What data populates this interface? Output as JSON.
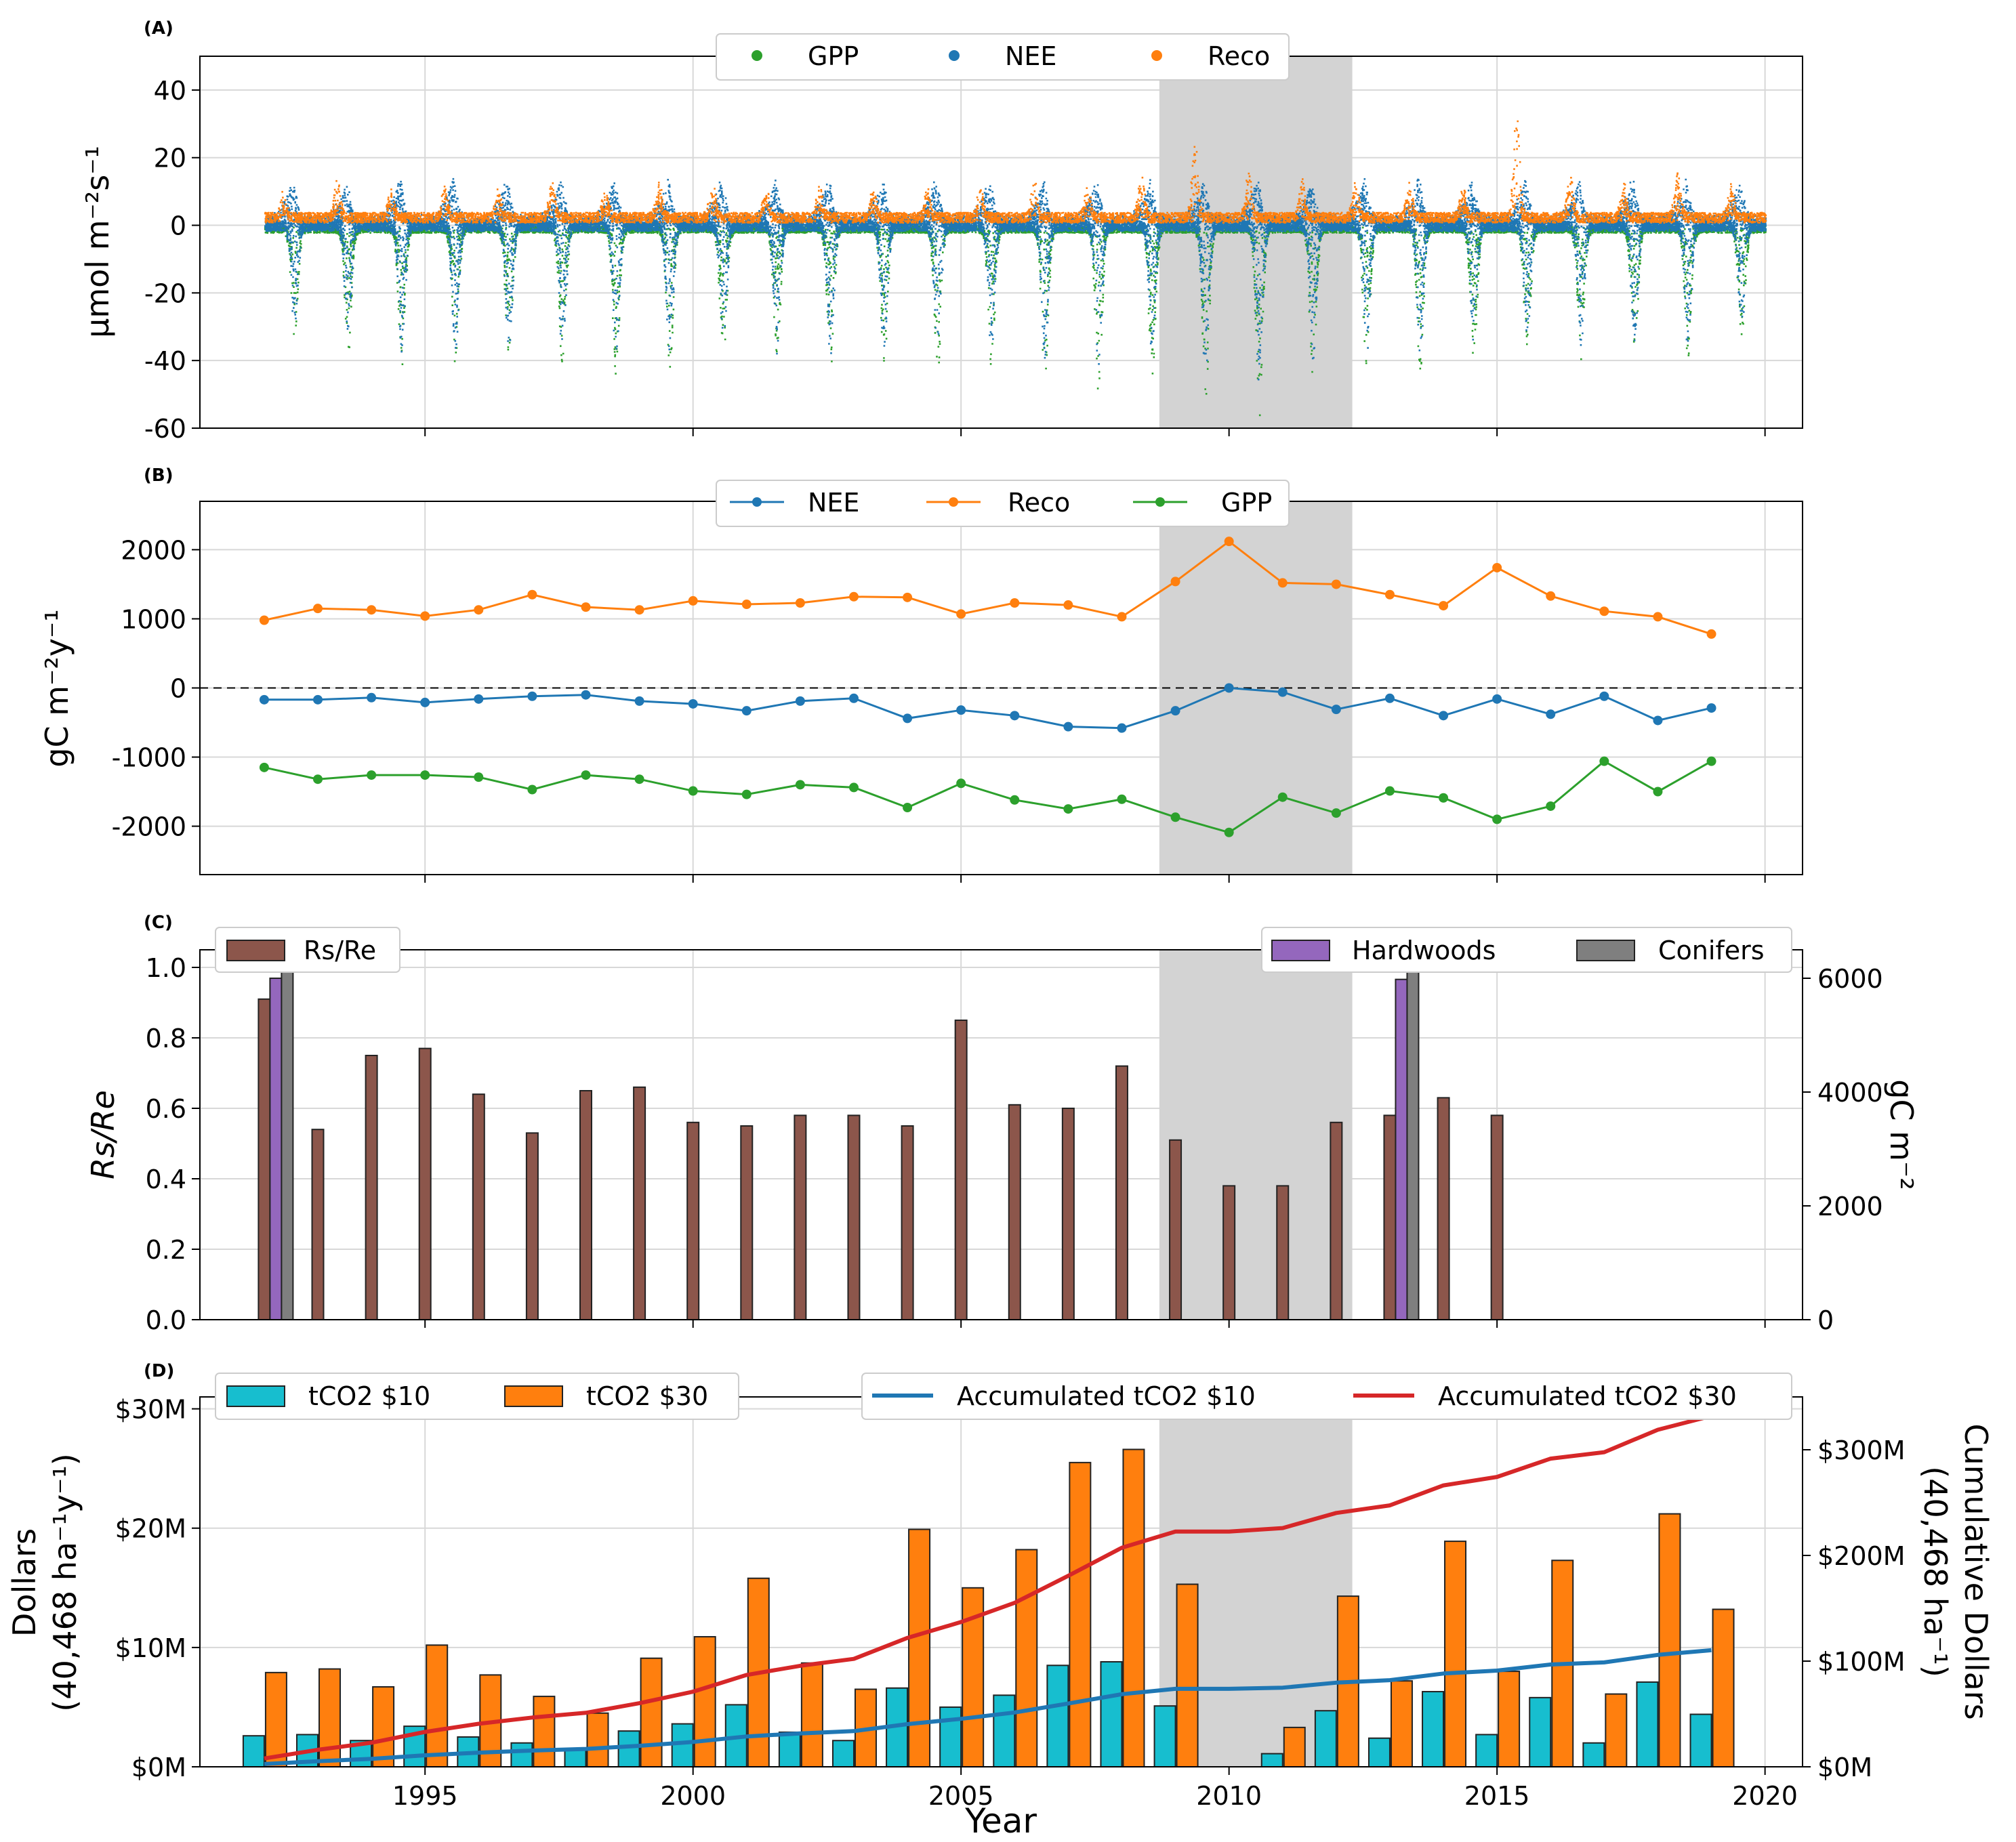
{
  "colors": {
    "gpp": "#2ca02c",
    "nee": "#1f77b4",
    "reco": "#ff7f0e",
    "shade": "#d3d3d3",
    "rsre": "#8c564b",
    "hardwoods": "#9467bd",
    "conifers": "#7f7f7f",
    "t10": "#17becf",
    "t30": "#ff7f0e",
    "acc10": "#1f77b4",
    "acc30": "#d62728"
  },
  "x_axis": {
    "label": "Year",
    "ticks": [
      1995,
      2000,
      2005,
      2010,
      2015,
      2020
    ],
    "range": [
      1990.8,
      2020.7
    ]
  },
  "shaded_period": [
    2008.7,
    2012.3
  ],
  "chart_data": [
    {
      "panel": "(A)",
      "type": "scatter",
      "ylabel": "μmol m⁻²s⁻¹",
      "ylim": [
        -60,
        50
      ],
      "yticks": [
        40,
        20,
        0,
        -20,
        -40,
        -60
      ],
      "legend": [
        "GPP",
        "NEE",
        "Reco"
      ],
      "note": "half-hourly fluxes 1992–2019; seasonal summer troughs",
      "x_range": [
        1992,
        2020
      ],
      "yearly_summer_min_nee": [
        -29,
        -34,
        -37,
        -37,
        -37,
        -38,
        -40,
        -38,
        -36,
        -37,
        -38,
        -37,
        -38,
        -38,
        -40,
        -43,
        -38,
        -45,
        -52,
        -40,
        -38,
        -38,
        -35,
        -33,
        -35,
        -35,
        -36,
        -30
      ],
      "yearly_summer_min_gpp": [
        -33,
        -38,
        -40,
        -40,
        -40,
        -41,
        -43,
        -42,
        -40,
        -40,
        -42,
        -40,
        -42,
        -42,
        -45,
        -48,
        -43,
        -50,
        -58,
        -44,
        -42,
        -42,
        -39,
        -36,
        -39,
        -39,
        -40,
        -33
      ],
      "yearly_peak_reco": [
        8,
        11,
        9,
        9,
        8,
        11,
        8,
        10,
        10,
        9,
        9,
        9,
        9,
        9,
        12,
        9,
        14,
        24,
        13,
        12,
        11,
        10,
        9,
        32,
        12,
        10,
        13,
        9
      ]
    },
    {
      "panel": "(B)",
      "type": "line",
      "ylabel": "gC m⁻²y⁻¹",
      "ylim": [
        -2700,
        2700
      ],
      "yticks": [
        2000,
        1000,
        0,
        -1000,
        -2000
      ],
      "x": [
        1992,
        1993,
        1994,
        1995,
        1996,
        1997,
        1998,
        1999,
        2000,
        2001,
        2002,
        2003,
        2004,
        2005,
        2006,
        2007,
        2008,
        2009,
        2010,
        2011,
        2012,
        2013,
        2014,
        2015,
        2016,
        2017,
        2018,
        2019
      ],
      "series": [
        {
          "name": "NEE",
          "values": [
            -170,
            -170,
            -140,
            -210,
            -160,
            -120,
            -100,
            -190,
            -230,
            -330,
            -190,
            -150,
            -440,
            -320,
            -400,
            -560,
            -580,
            -330,
            0,
            -60,
            -310,
            -150,
            -400,
            -160,
            -380,
            -120,
            -470,
            -290
          ]
        },
        {
          "name": "Reco",
          "values": [
            980,
            1150,
            1130,
            1040,
            1130,
            1350,
            1170,
            1130,
            1260,
            1210,
            1230,
            1320,
            1310,
            1070,
            1230,
            1200,
            1030,
            1540,
            2120,
            1520,
            1500,
            1350,
            1190,
            1740,
            1330,
            1110,
            1030,
            780
          ]
        },
        {
          "name": "GPP",
          "values": [
            -1150,
            -1320,
            -1260,
            -1260,
            -1290,
            -1470,
            -1260,
            -1320,
            -1490,
            -1540,
            -1400,
            -1440,
            -1730,
            -1380,
            -1620,
            -1750,
            -1610,
            -1870,
            -2090,
            -1580,
            -1810,
            -1490,
            -1590,
            -1900,
            -1710,
            -1060,
            -1500,
            -1060
          ]
        }
      ],
      "zero_line": "dashed"
    },
    {
      "panel": "(C)",
      "type": "bar",
      "ylabel": "Rs/Re",
      "ylabel2": "gC m⁻²",
      "ylim": [
        0,
        1.05
      ],
      "yticks": [
        "0.0",
        "0.2",
        "0.4",
        "0.6",
        "0.8",
        "1.0"
      ],
      "ylim2": [
        0,
        6500
      ],
      "yticks2": [
        0,
        2000,
        4000,
        6000
      ],
      "legend": [
        "Rs/Re",
        "Hardwoods",
        "Conifers"
      ],
      "rsre": {
        "x": [
          1992,
          1993,
          1994,
          1995,
          1996,
          1997,
          1998,
          1999,
          2000,
          2001,
          2002,
          2003,
          2004,
          2005,
          2006,
          2007,
          2008,
          2009,
          2010,
          2011,
          2012,
          2013,
          2014,
          2015
        ],
        "values": [
          0.91,
          0.54,
          0.75,
          0.77,
          0.64,
          0.53,
          0.65,
          0.66,
          0.56,
          0.55,
          0.58,
          0.58,
          0.55,
          0.85,
          0.61,
          0.6,
          0.72,
          0.51,
          0.38,
          0.38,
          0.56,
          0.58,
          0.63,
          0.58
        ]
      },
      "biomass": [
        {
          "year": 1992,
          "hardwoods": 6000,
          "conifers": 6230
        },
        {
          "year": 2013,
          "hardwoods": 5980,
          "conifers": 6250
        }
      ]
    },
    {
      "panel": "(D)",
      "type": "bar+line",
      "ylabel": "Dollars",
      "ylabel_sub": "(40,468 ha⁻¹y⁻¹)",
      "ylabel2": "Cumulative Dollars",
      "ylabel2_sub": "(40,468 ha⁻¹)",
      "ylim": [
        0,
        31
      ],
      "yticks": [
        "$0M",
        "$10M",
        "$20M",
        "$30M"
      ],
      "ylim2": [
        0,
        350
      ],
      "yticks2": [
        "$0M",
        "$100M",
        "$200M",
        "$300M"
      ],
      "legend": [
        "tCO2 $10",
        "tCO2 $30",
        "Accumulated tCO2 $10",
        "Accumulated tCO2 $30"
      ],
      "x": [
        1992,
        1993,
        1994,
        1995,
        1996,
        1997,
        1998,
        1999,
        2000,
        2001,
        2002,
        2003,
        2004,
        2005,
        2006,
        2007,
        2008,
        2009,
        2010,
        2011,
        2012,
        2013,
        2014,
        2015,
        2016,
        2017,
        2018,
        2019
      ],
      "tco2_10": [
        2.6,
        2.7,
        2.2,
        3.4,
        2.5,
        2.0,
        1.5,
        3.0,
        3.6,
        5.2,
        2.9,
        2.2,
        6.6,
        5.0,
        6.0,
        8.5,
        8.8,
        5.1,
        0,
        1.1,
        4.7,
        2.4,
        6.3,
        2.7,
        5.8,
        2.0,
        7.1,
        4.4
      ],
      "tco2_30": [
        7.9,
        8.2,
        6.7,
        10.2,
        7.7,
        5.9,
        4.5,
        9.1,
        10.9,
        15.8,
        8.7,
        6.5,
        19.9,
        15.0,
        18.2,
        25.5,
        26.6,
        15.3,
        0,
        3.3,
        14.3,
        7.2,
        18.9,
        8.0,
        17.3,
        6.1,
        21.2,
        13.2
      ]
    }
  ]
}
